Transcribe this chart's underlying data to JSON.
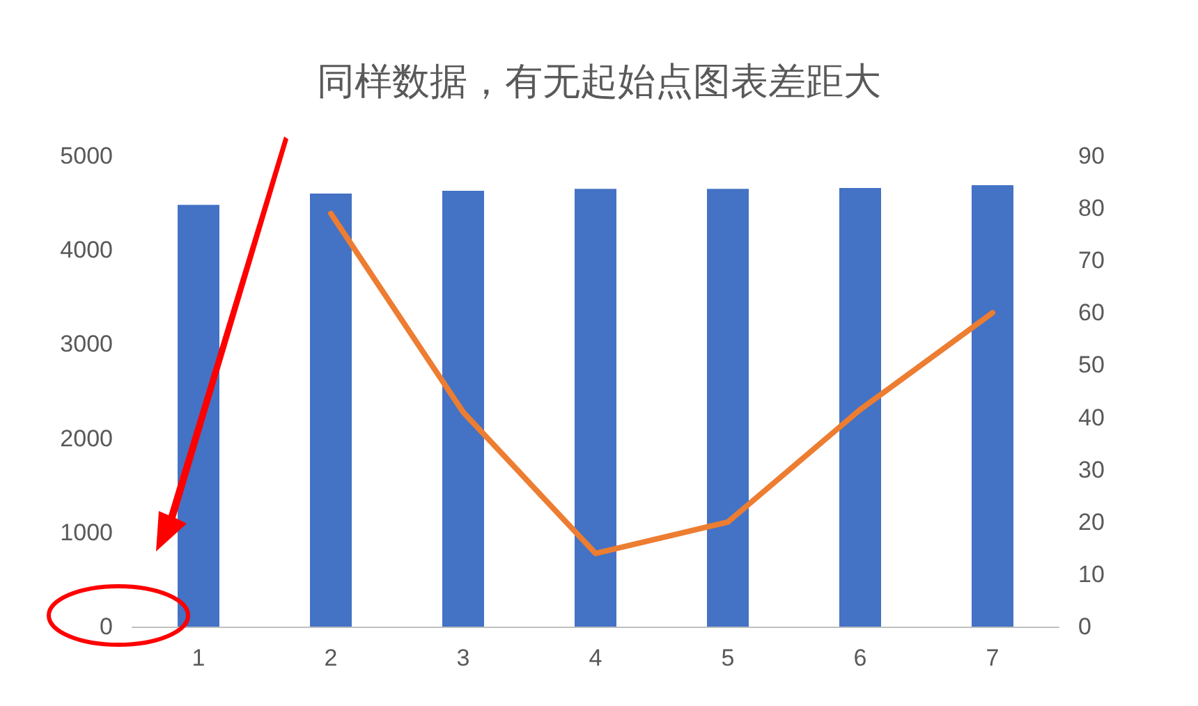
{
  "chart_data": {
    "type": "bar",
    "title": "同样数据，有无起始点图表差距大",
    "categories": [
      "1",
      "2",
      "3",
      "4",
      "5",
      "6",
      "7"
    ],
    "series": [
      {
        "color": "#4472c4",
        "values": [
          4480,
          4600,
          4630,
          4650,
          4650,
          4660,
          4690
        ]
      },
      {
        "type": "line",
        "axis": "y2",
        "color": "#ed7d31",
        "values": [
          null,
          79,
          41,
          14,
          20,
          41.5,
          60
        ]
      }
    ],
    "ylim": [
      0,
      5000
    ],
    "yticks": [
      0,
      1000,
      2000,
      3000,
      4000,
      5000
    ],
    "y2lim": [
      0,
      90
    ],
    "y2ticks": [
      0,
      10,
      20,
      30,
      40,
      50,
      60,
      70,
      80,
      90
    ],
    "grid": false,
    "marker": "none",
    "line_style": "solid"
  }
}
